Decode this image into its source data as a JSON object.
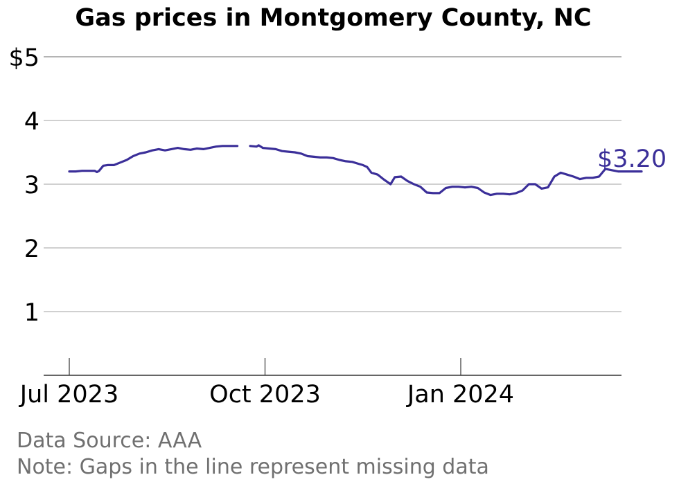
{
  "chart_data": {
    "type": "line",
    "title": "Gas prices in Montgomery County, NC",
    "xlabel": "",
    "ylabel": "",
    "ylim": [
      0,
      5
    ],
    "xlim": [
      "2023-07-01",
      "2024-03-31"
    ],
    "ytick_labels": [
      "$5",
      "4",
      "3",
      "2",
      "1"
    ],
    "ytick_values": [
      5,
      4,
      3,
      2,
      1
    ],
    "xtick_labels": [
      "Jul 2023",
      "Oct 2023",
      "Jan 2024"
    ],
    "xtick_dates": [
      "2023-07-01",
      "2023-10-01",
      "2024-01-01"
    ],
    "grid": true,
    "line_color": "#3b2f99",
    "end_label": "$3.20",
    "series": [
      {
        "segments": [
          {
            "x": [
              "2023-07-01",
              "2023-07-04",
              "2023-07-07",
              "2023-07-10",
              "2023-07-13",
              "2023-07-14",
              "2023-07-15",
              "2023-07-17",
              "2023-07-19",
              "2023-07-22",
              "2023-07-25",
              "2023-07-28",
              "2023-07-31",
              "2023-08-03",
              "2023-08-06",
              "2023-08-09",
              "2023-08-12",
              "2023-08-15",
              "2023-08-18",
              "2023-08-21",
              "2023-08-24",
              "2023-08-27",
              "2023-08-30",
              "2023-09-02",
              "2023-09-05",
              "2023-09-08",
              "2023-09-11",
              "2023-09-13",
              "2023-09-15",
              "2023-09-18"
            ],
            "y": [
              3.2,
              3.2,
              3.21,
              3.21,
              3.21,
              3.19,
              3.21,
              3.29,
              3.3,
              3.3,
              3.34,
              3.38,
              3.44,
              3.48,
              3.5,
              3.53,
              3.55,
              3.53,
              3.55,
              3.57,
              3.55,
              3.54,
              3.56,
              3.55,
              3.57,
              3.59,
              3.6,
              3.6,
              3.6,
              3.6
            ]
          },
          {
            "x": [
              "2023-09-24",
              "2023-09-27",
              "2023-09-28",
              "2023-09-30",
              "2023-10-03",
              "2023-10-06",
              "2023-10-09",
              "2023-10-12",
              "2023-10-15",
              "2023-10-18",
              "2023-10-21",
              "2023-10-24",
              "2023-10-27",
              "2023-10-30",
              "2023-11-02",
              "2023-11-05",
              "2023-11-08",
              "2023-11-11",
              "2023-11-14",
              "2023-11-16",
              "2023-11-18",
              "2023-11-20",
              "2023-11-23",
              "2023-11-26",
              "2023-11-29",
              "2023-12-01",
              "2023-12-04",
              "2023-12-07",
              "2023-12-10",
              "2023-12-13",
              "2023-12-16",
              "2023-12-19",
              "2023-12-22",
              "2023-12-25",
              "2023-12-28",
              "2023-12-31",
              "2024-01-03",
              "2024-01-06",
              "2024-01-09",
              "2024-01-12",
              "2024-01-15",
              "2024-01-18",
              "2024-01-21",
              "2024-01-24",
              "2024-01-27",
              "2024-01-30",
              "2024-02-02",
              "2024-02-05",
              "2024-02-08",
              "2024-02-11",
              "2024-02-14",
              "2024-02-17",
              "2024-02-20",
              "2024-02-23",
              "2024-02-26",
              "2024-02-29",
              "2024-03-03",
              "2024-03-06",
              "2024-03-09",
              "2024-03-12",
              "2024-03-15",
              "2024-03-18",
              "2024-03-21",
              "2024-03-24",
              "2024-03-26"
            ],
            "y": [
              3.6,
              3.59,
              3.61,
              3.57,
              3.56,
              3.55,
              3.52,
              3.51,
              3.5,
              3.48,
              3.44,
              3.43,
              3.42,
              3.42,
              3.41,
              3.38,
              3.36,
              3.35,
              3.32,
              3.3,
              3.27,
              3.18,
              3.15,
              3.07,
              3.0,
              3.11,
              3.12,
              3.05,
              3.0,
              2.96,
              2.87,
              2.86,
              2.86,
              2.94,
              2.96,
              2.96,
              2.95,
              2.96,
              2.94,
              2.87,
              2.83,
              2.85,
              2.85,
              2.84,
              2.86,
              2.9,
              3.0,
              3.0,
              2.93,
              2.95,
              3.12,
              3.18,
              3.15,
              3.12,
              3.08,
              3.1,
              3.1,
              3.12,
              3.24,
              3.22,
              3.2,
              3.2,
              3.2,
              3.2,
              3.2
            ]
          }
        ]
      }
    ]
  },
  "notes": {
    "source": "Data Source: AAA",
    "note": "Note: Gaps in the line represent missing data"
  }
}
